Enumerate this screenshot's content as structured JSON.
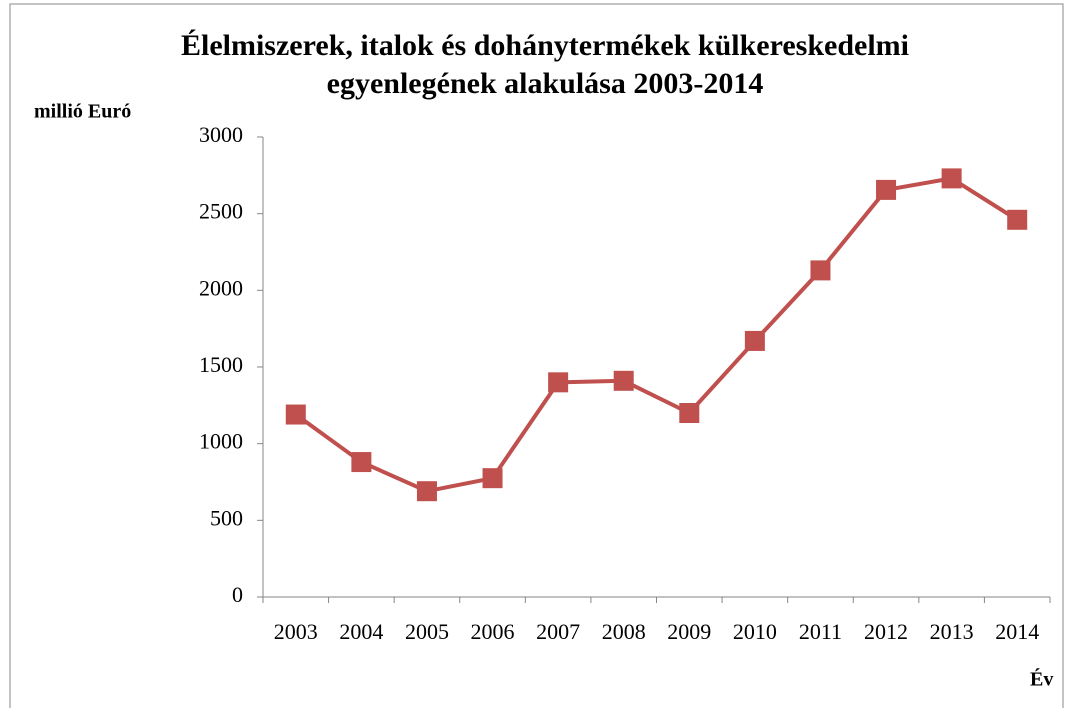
{
  "chart_data": {
    "type": "line",
    "title": [
      "Élelmiszerek, italok és dohánytermékek külkereskedelmi",
      "egyenlegének alakulása 2003-2014"
    ],
    "y_label": "millió Euró",
    "x_label": "Év",
    "categories": [
      "2003",
      "2004",
      "2005",
      "2006",
      "2007",
      "2008",
      "2009",
      "2010",
      "2011",
      "2012",
      "2013",
      "2014"
    ],
    "series": [
      {
        "name": "egyenleg",
        "color": "#c0504d",
        "values": [
          1190,
          880,
          690,
          775,
          1400,
          1410,
          1200,
          1670,
          2130,
          2655,
          2730,
          2460
        ]
      }
    ],
    "ylim": [
      0,
      3000
    ],
    "yticks": [
      0,
      500,
      1000,
      1500,
      2000,
      2500,
      3000
    ],
    "grid": false
  }
}
